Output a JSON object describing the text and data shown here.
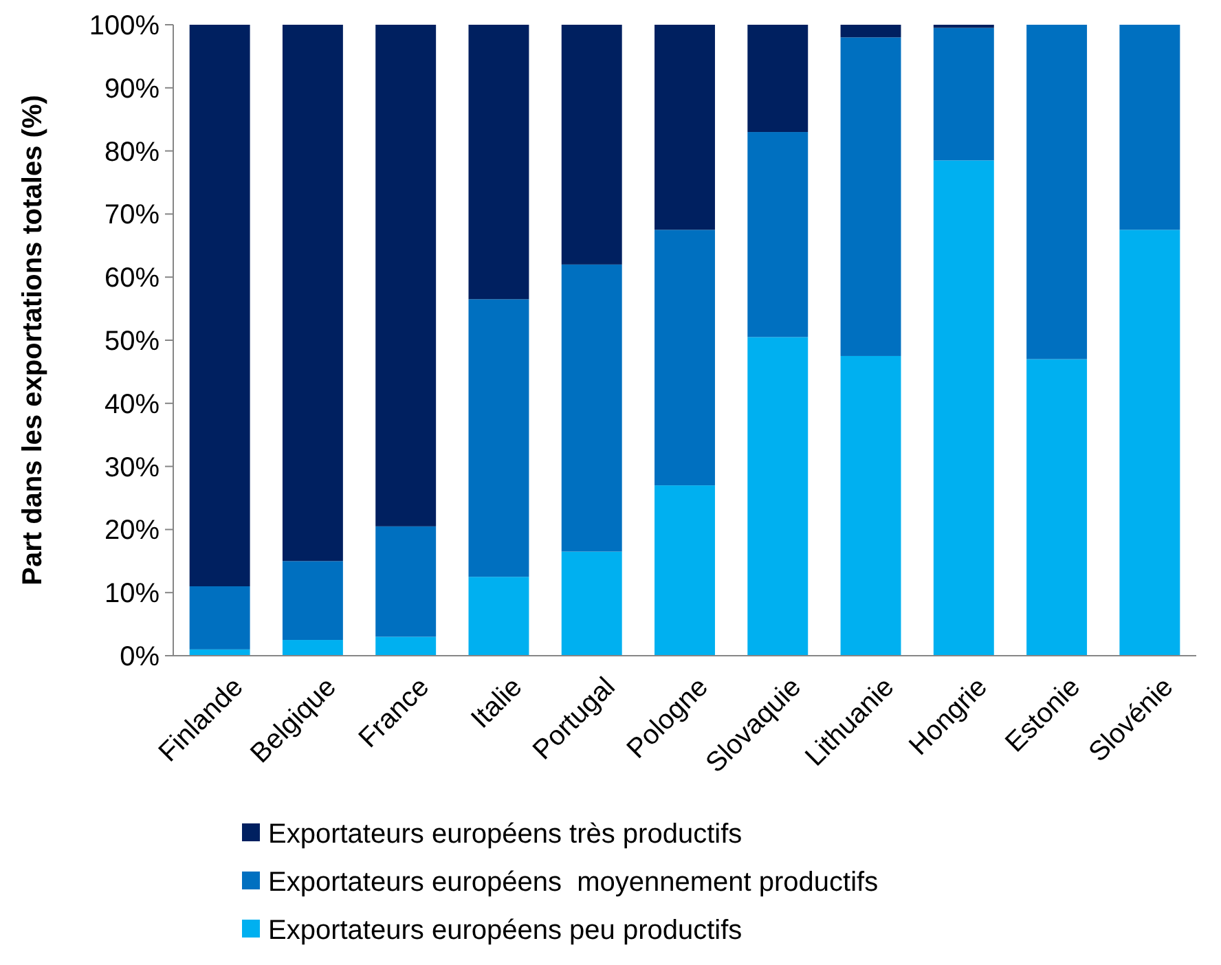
{
  "chart_data": {
    "type": "bar",
    "stacked": true,
    "ylabel": "Part dans les exportations totales (%)",
    "categories": [
      "Finlande",
      "Belgique",
      "France",
      "Italie",
      "Portugal",
      "Pologne",
      "Slovaquie",
      "Lithuanie",
      "Hongrie",
      "Estonie",
      "Slovénie"
    ],
    "series": [
      {
        "name": "Exportateurs européens peu productifs",
        "color": "#00b0f0",
        "values": [
          1,
          2.5,
          3,
          12.5,
          16.5,
          27,
          50.5,
          47.5,
          78.5,
          47,
          67.5
        ]
      },
      {
        "name": "Exportateurs européens  moyennement productifs",
        "color": "#0070c0",
        "values": [
          10,
          12.5,
          17.5,
          44,
          45.5,
          40.5,
          32.5,
          50.5,
          21,
          53,
          32.5
        ]
      },
      {
        "name": "Exportateurs européens très productifs",
        "color": "#002060",
        "values": [
          89,
          85,
          79.5,
          43.5,
          38,
          32.5,
          17,
          2,
          0.5,
          0,
          0
        ]
      }
    ],
    "ylim": [
      0,
      100
    ],
    "yticks": [
      {
        "value": 0,
        "label": "0%"
      },
      {
        "value": 10,
        "label": "10%"
      },
      {
        "value": 20,
        "label": "20%"
      },
      {
        "value": 30,
        "label": "30%"
      },
      {
        "value": 40,
        "label": "40%"
      },
      {
        "value": 50,
        "label": "50%"
      },
      {
        "value": 60,
        "label": "60%"
      },
      {
        "value": 70,
        "label": "70%"
      },
      {
        "value": 80,
        "label": "80%"
      },
      {
        "value": 90,
        "label": "90%"
      },
      {
        "value": 100,
        "label": "100%"
      }
    ],
    "grid": false,
    "legend": "bottom"
  }
}
